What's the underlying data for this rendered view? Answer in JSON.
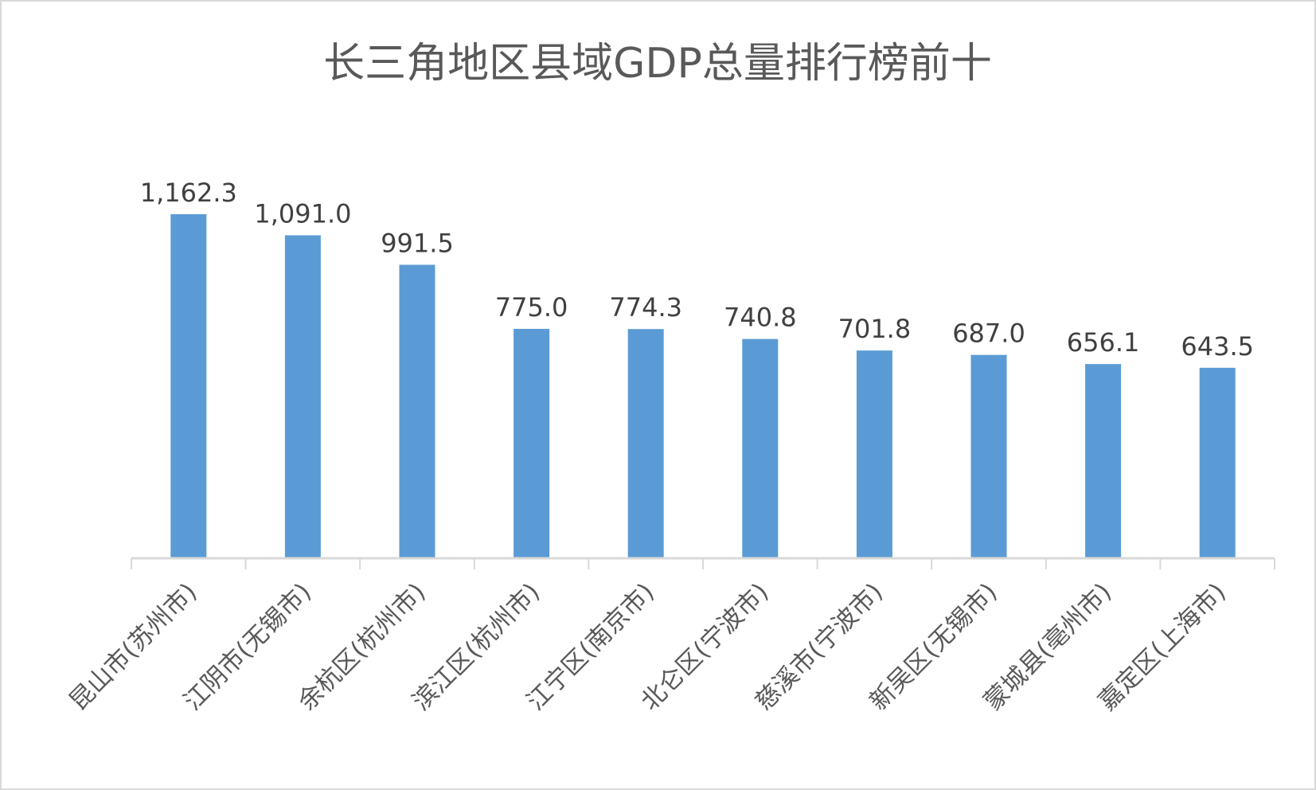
{
  "chart_data": {
    "type": "bar",
    "title": "长三角地区县域GDP总量排行榜前十",
    "xlabel": "",
    "ylabel": "",
    "categories": [
      "昆山市(苏州市)",
      "江阴市(无锡市)",
      "余杭区(杭州市)",
      "滨江区(杭州市)",
      "江宁区(南京市)",
      "北仑区(宁波市)",
      "慈溪市(宁波市)",
      "新吴区(无锡市)",
      "蒙城县(亳州市)",
      "嘉定区(上海市)"
    ],
    "values": [
      1162.3,
      1091.0,
      991.5,
      775.0,
      774.3,
      740.8,
      701.8,
      687.0,
      656.1,
      643.5
    ],
    "data_labels": [
      "1,162.3",
      "1,091.0",
      "991.5",
      "775.0",
      "774.3",
      "740.8",
      "701.8",
      "687.0",
      "656.1",
      "643.5"
    ],
    "ylim": [
      0,
      1162.3
    ],
    "grid": false,
    "legend": "none",
    "bar_color": "#5b9bd5",
    "axis_color": "#d9d9d9"
  }
}
